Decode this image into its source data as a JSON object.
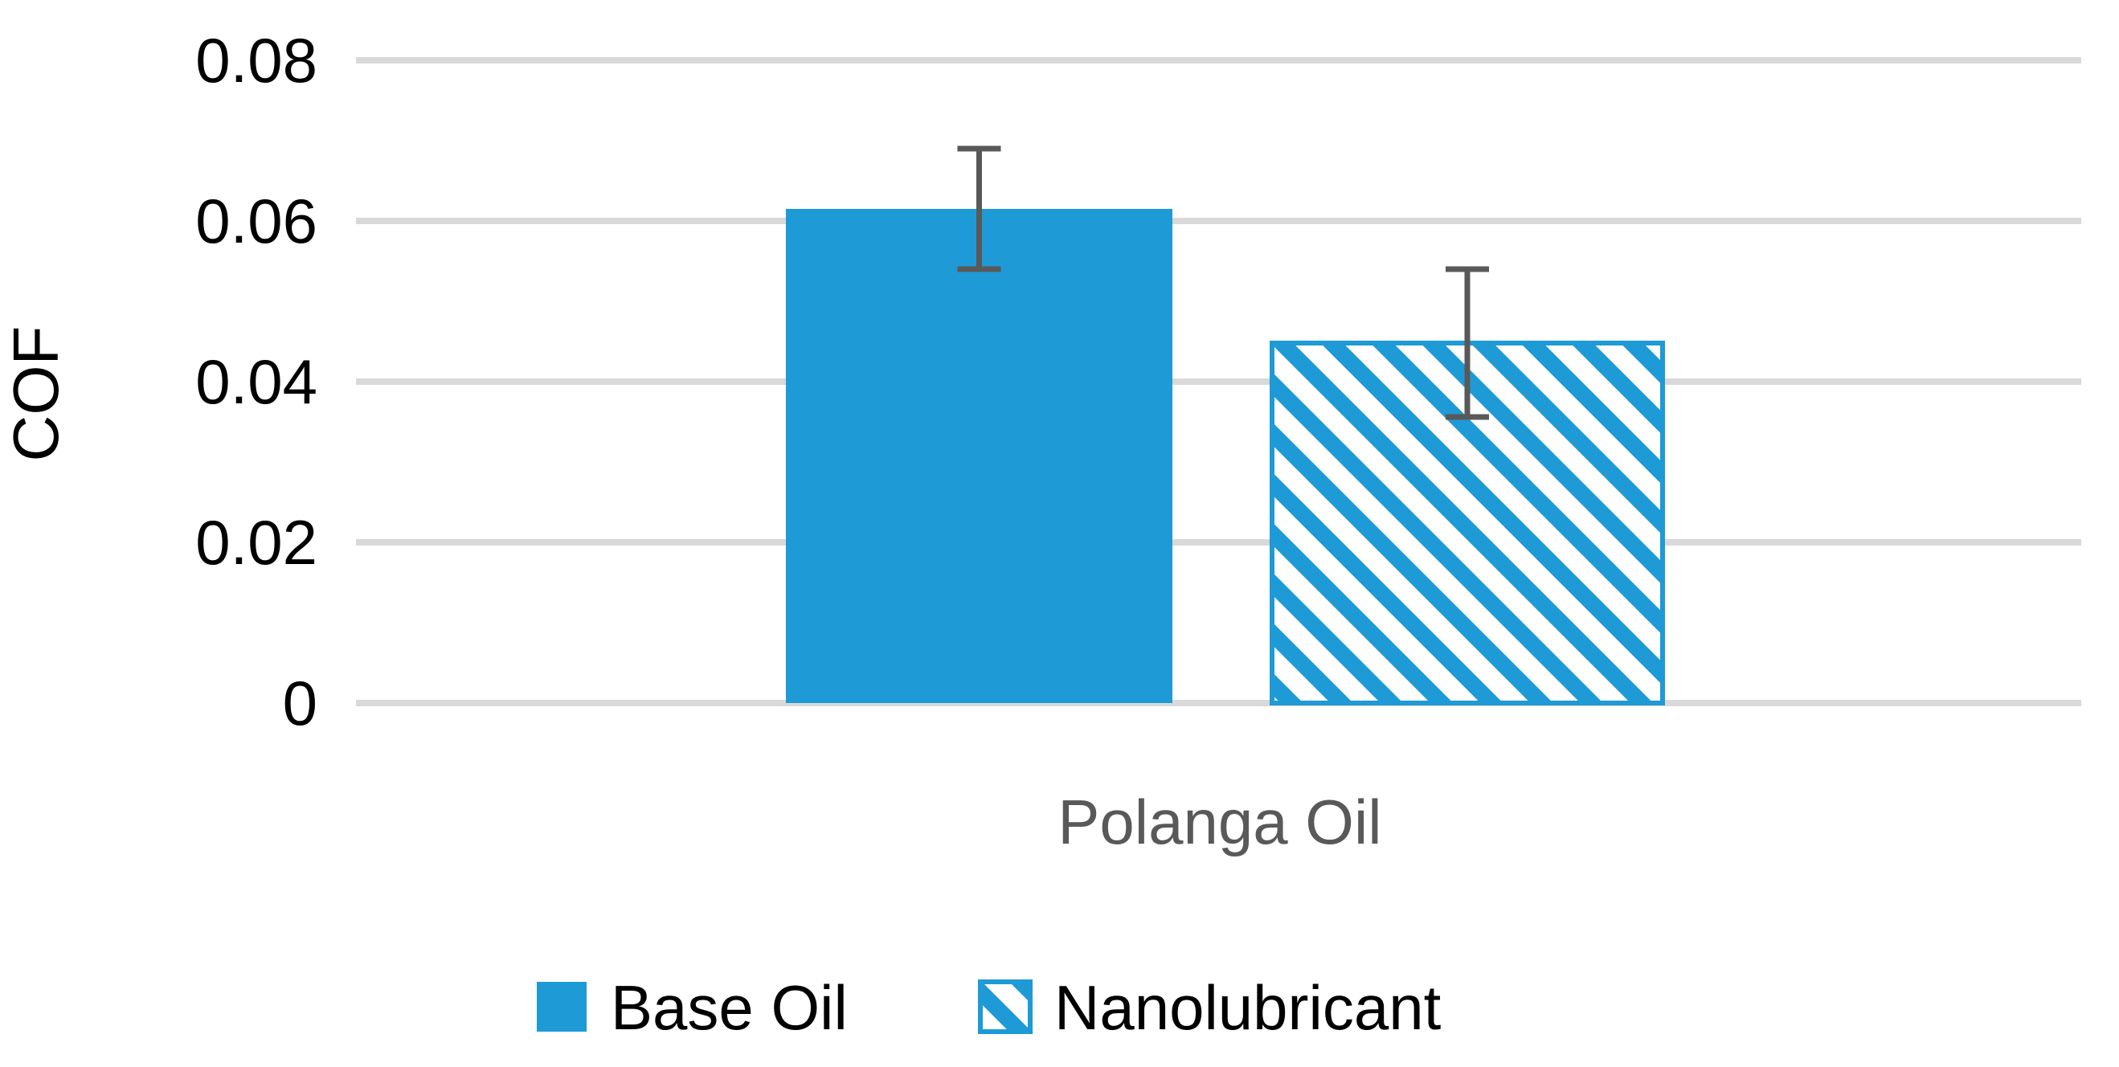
{
  "chart_data": {
    "type": "bar",
    "title": "",
    "xlabel": "",
    "ylabel": "COF",
    "categories": [
      "Polanga Oil"
    ],
    "series": [
      {
        "name": "Base Oil",
        "values": [
          0.0615
        ],
        "error": [
          0.0075
        ],
        "color": "#1e9ad6",
        "fill": "solid"
      },
      {
        "name": "Nanolubricant",
        "values": [
          0.0448
        ],
        "error": [
          0.0092
        ],
        "color": "#1e9ad6",
        "fill": "diagonal-stripes"
      }
    ],
    "ylim": [
      0,
      0.08
    ],
    "yticks": [
      "0",
      "0.02",
      "0.04",
      "0.06",
      "0.08"
    ],
    "grid": true,
    "legend_position": "bottom",
    "colors": {
      "gridline": "#d9d9d9",
      "error_bar": "#595959",
      "category_label": "#595959"
    }
  }
}
